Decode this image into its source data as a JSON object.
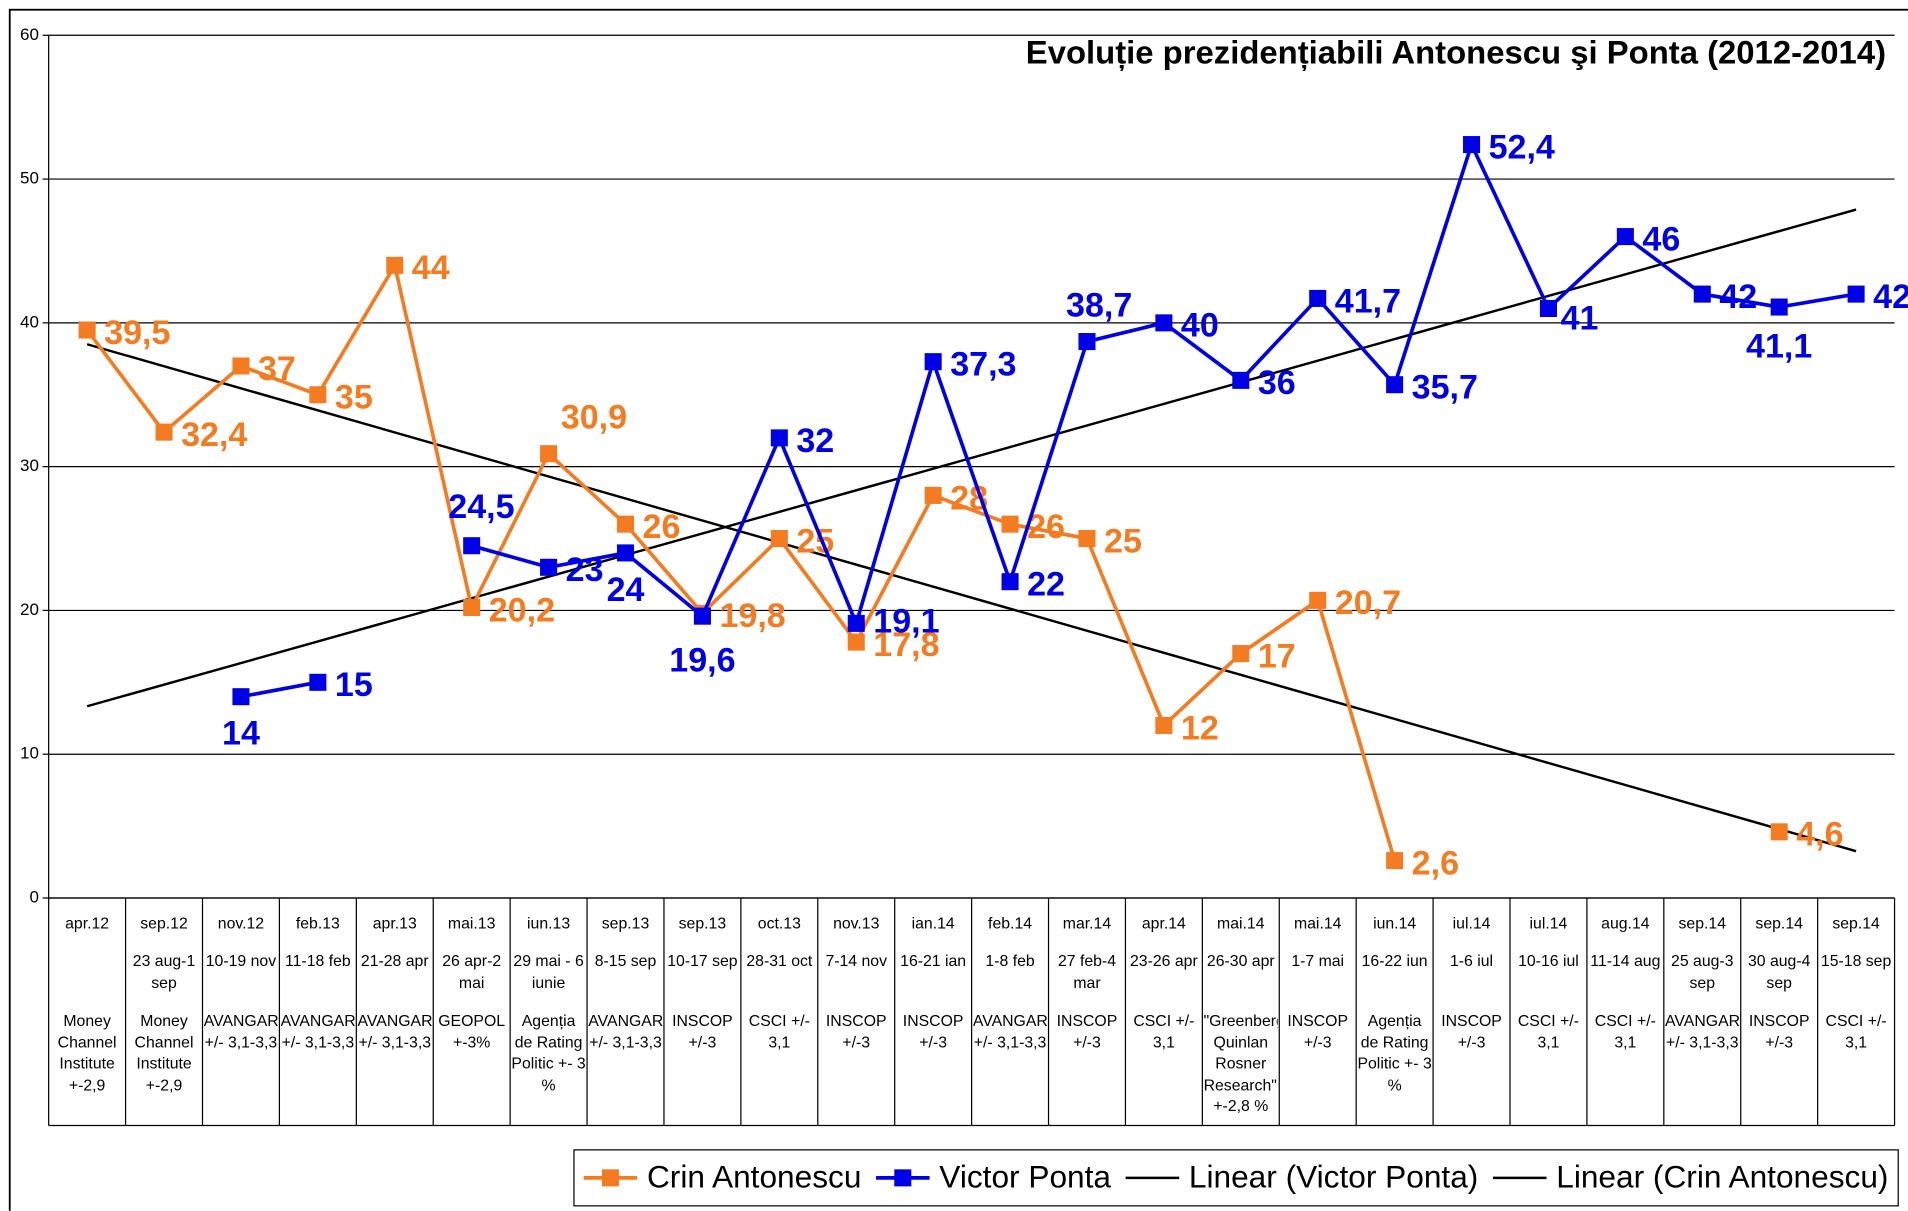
{
  "chart_data": {
    "type": "line",
    "title": "Evoluție prezidențiabili Antonescu şi Ponta (2012-2014)",
    "categories": [
      "apr.12",
      "sep.12",
      "nov.12",
      "feb.13",
      "apr.13",
      "mai.13",
      "iun.13",
      "sep.13",
      "sep.13",
      "oct.13",
      "nov.13",
      "ian.14",
      "feb.14",
      "mar.14",
      "apr.14",
      "mai.14",
      "mai.14",
      "iun.14",
      "iul.14",
      "iul.14",
      "aug.14",
      "sep.14",
      "sep.14",
      "sep.14"
    ],
    "dates": [
      null,
      "23 aug-1 sep",
      "10-19 nov",
      "11-18 feb",
      "21-28 apr",
      "26 apr-2 mai",
      "29 mai - 6 iunie",
      "8-15 sep",
      "10-17 sep",
      "28-31 oct",
      "7-14 nov",
      "16-21 ian",
      "1-8 feb",
      "27 feb-4 mar",
      "23-26 apr",
      "26-30 apr",
      "1-7 mai",
      "16-22 iun",
      "1-6 iul",
      "10-16 iul",
      "11-14 aug",
      "25 aug-3 sep",
      "30 aug-4 sep",
      "15-18 sep"
    ],
    "sources": [
      "Money Channel Institute +-2,9",
      "Money Channel Institute +-2,9",
      "AVANGARDE +/- 3,1-3,3",
      "AVANGARDE +/- 3,1-3,3",
      "AVANGARDE +/- 3,1-3,3",
      "GEOPOL +-3%",
      "Agenția de Rating Politic +- 3 %",
      "AVANGARDE +/- 3,1-3,3",
      "INSCOP +/-3",
      "CSCI +/- 3,1",
      "INSCOP +/-3",
      "INSCOP +/-3",
      "AVANGARDE +/- 3,1-3,3",
      "INSCOP +/-3",
      "CSCI +/- 3,1",
      "\"Greenberg Quinlan Rosner Research\", +-2,8 %",
      "INSCOP +/-3",
      "Agenția de Rating Politic +- 3 %",
      "INSCOP +/-3",
      "CSCI +/- 3,1",
      "CSCI +/- 3,1",
      "AVANGARDE +/- 3,1-3,3",
      "INSCOP +/-3",
      "CSCI +/- 3,1"
    ],
    "series": [
      {
        "name": "Crin Antonescu",
        "color": "#f47b20",
        "values": [
          39.5,
          32.4,
          37,
          35,
          44,
          20.2,
          30.9,
          26,
          19.8,
          25,
          17.8,
          28,
          26,
          25,
          12,
          17,
          20.7,
          2.6,
          null,
          null,
          null,
          null,
          4.6,
          null
        ],
        "value_labels": [
          "39,5",
          "32,4",
          "37",
          "35",
          "44",
          "20,2",
          "30,9",
          "26",
          "19,8",
          "25",
          "17,8",
          "28",
          "26",
          "25",
          "12",
          "17",
          "20,7",
          "2,6",
          null,
          null,
          null,
          null,
          "4,6",
          null
        ]
      },
      {
        "name": "Victor Ponta",
        "color": "#0000e6",
        "values": [
          null,
          null,
          14,
          15,
          null,
          24.5,
          23,
          24,
          19.6,
          32,
          19.1,
          37.3,
          22,
          38.7,
          40,
          36,
          41.7,
          35.7,
          52.4,
          41,
          46,
          42,
          41.1,
          42
        ],
        "value_labels": [
          null,
          null,
          "14",
          "15",
          null,
          "24,5",
          "23",
          "24",
          "19,6",
          "32",
          "19,1",
          "37,3",
          "22",
          "38,7",
          "40",
          "36",
          "41,7",
          "35,7",
          "52,4",
          "41",
          "46",
          "42",
          "41,1",
          "42"
        ]
      }
    ],
    "trendlines": [
      {
        "name": "Linear (Victor Ponta)",
        "series": 1,
        "color": "#000000"
      },
      {
        "name": "Linear (Crin Antonescu)",
        "series": 0,
        "color": "#000000"
      }
    ],
    "ylim": [
      0,
      60
    ],
    "yticks": [
      0,
      10,
      20,
      30,
      40,
      50,
      60
    ],
    "grid": true,
    "legend": "bottom-right"
  }
}
